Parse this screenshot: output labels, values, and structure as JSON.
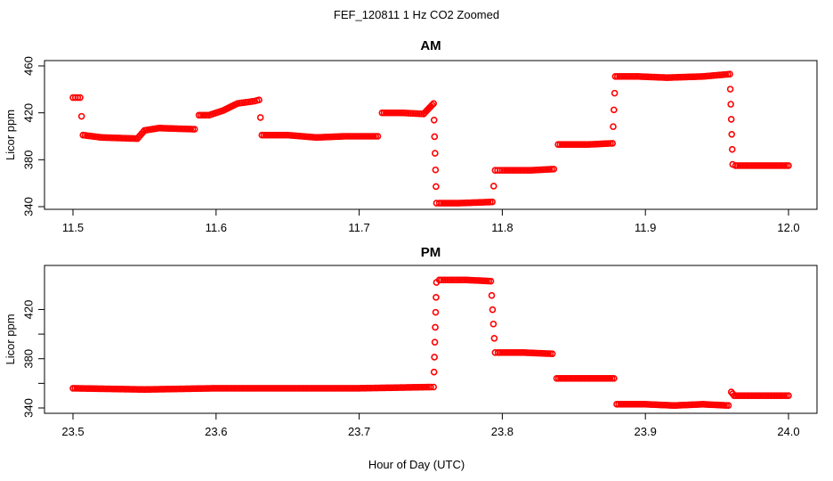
{
  "figure": {
    "title": "FEF_120811  1 Hz CO2 Zoomed",
    "xlabel": "Hour of Day (UTC)"
  },
  "chart_data": [
    {
      "type": "scatter",
      "title": "AM",
      "xlabel": "",
      "ylabel": "Licor ppm",
      "xlim": [
        11.5,
        12.0
      ],
      "ylim": [
        340,
        460
      ],
      "xticks": [
        11.5,
        11.6,
        11.7,
        11.8,
        11.9,
        12.0
      ],
      "xtick_labels": [
        "11.5",
        "11.6",
        "11.7",
        "11.8",
        "11.9",
        "12.0"
      ],
      "yticks": [
        340,
        380,
        420,
        460
      ],
      "ytick_labels": [
        "340",
        "380",
        "420",
        "460"
      ],
      "grid": false,
      "color": "#ff0000",
      "marker": "open-circle",
      "series": [
        {
          "x": [
            11.5,
            11.505,
            11.507,
            11.52,
            11.545,
            11.55,
            11.56,
            11.585,
            11.588,
            11.595,
            11.605,
            11.615,
            11.627,
            11.63,
            11.632,
            11.65,
            11.67,
            11.69,
            11.713,
            11.716,
            11.73,
            11.745,
            11.752,
            11.754,
            11.756,
            11.77,
            11.793,
            11.795,
            11.8,
            11.82,
            11.836,
            11.839,
            11.86,
            11.877,
            11.879,
            11.895,
            11.915,
            11.94,
            11.959,
            11.961,
            11.963,
            11.98,
            12.0
          ],
          "y": [
            433,
            433,
            401,
            399,
            398,
            405,
            407,
            406,
            418,
            418,
            422,
            428,
            430,
            431,
            401,
            401,
            399,
            400,
            400,
            420,
            420,
            419,
            428,
            343,
            343,
            343,
            344,
            371,
            371,
            371,
            372,
            393,
            393,
            394,
            451,
            451,
            450,
            451,
            453,
            376,
            375,
            375,
            375
          ]
        }
      ]
    },
    {
      "type": "scatter",
      "title": "PM",
      "xlabel": "",
      "ylabel": "Licor ppm",
      "xlim": [
        23.5,
        24.0
      ],
      "ylim": [
        340,
        450
      ],
      "xticks": [
        23.5,
        23.6,
        23.7,
        23.8,
        23.9,
        24.0
      ],
      "xtick_labels": [
        "23.5",
        "23.6",
        "23.7",
        "23.8",
        "23.9",
        "24.0"
      ],
      "yticks": [
        340,
        360,
        380,
        400,
        420
      ],
      "ytick_labels": [
        "340",
        "",
        "380",
        "",
        "420"
      ],
      "grid": false,
      "color": "#ff0000",
      "marker": "open-circle",
      "series": [
        {
          "x": [
            23.5,
            23.55,
            23.6,
            23.65,
            23.7,
            23.75,
            23.752,
            23.754,
            23.756,
            23.775,
            23.792,
            23.795,
            23.797,
            23.815,
            23.835,
            23.838,
            23.86,
            23.878,
            23.88,
            23.9,
            23.92,
            23.94,
            23.958,
            23.96,
            23.962,
            23.98,
            24.0
          ],
          "y": [
            356,
            355,
            356,
            356,
            356,
            357,
            357,
            442,
            444,
            444,
            443,
            385,
            385,
            385,
            384,
            364,
            364,
            364,
            343,
            343,
            342,
            343,
            342,
            353,
            350,
            350,
            350
          ]
        }
      ]
    }
  ]
}
